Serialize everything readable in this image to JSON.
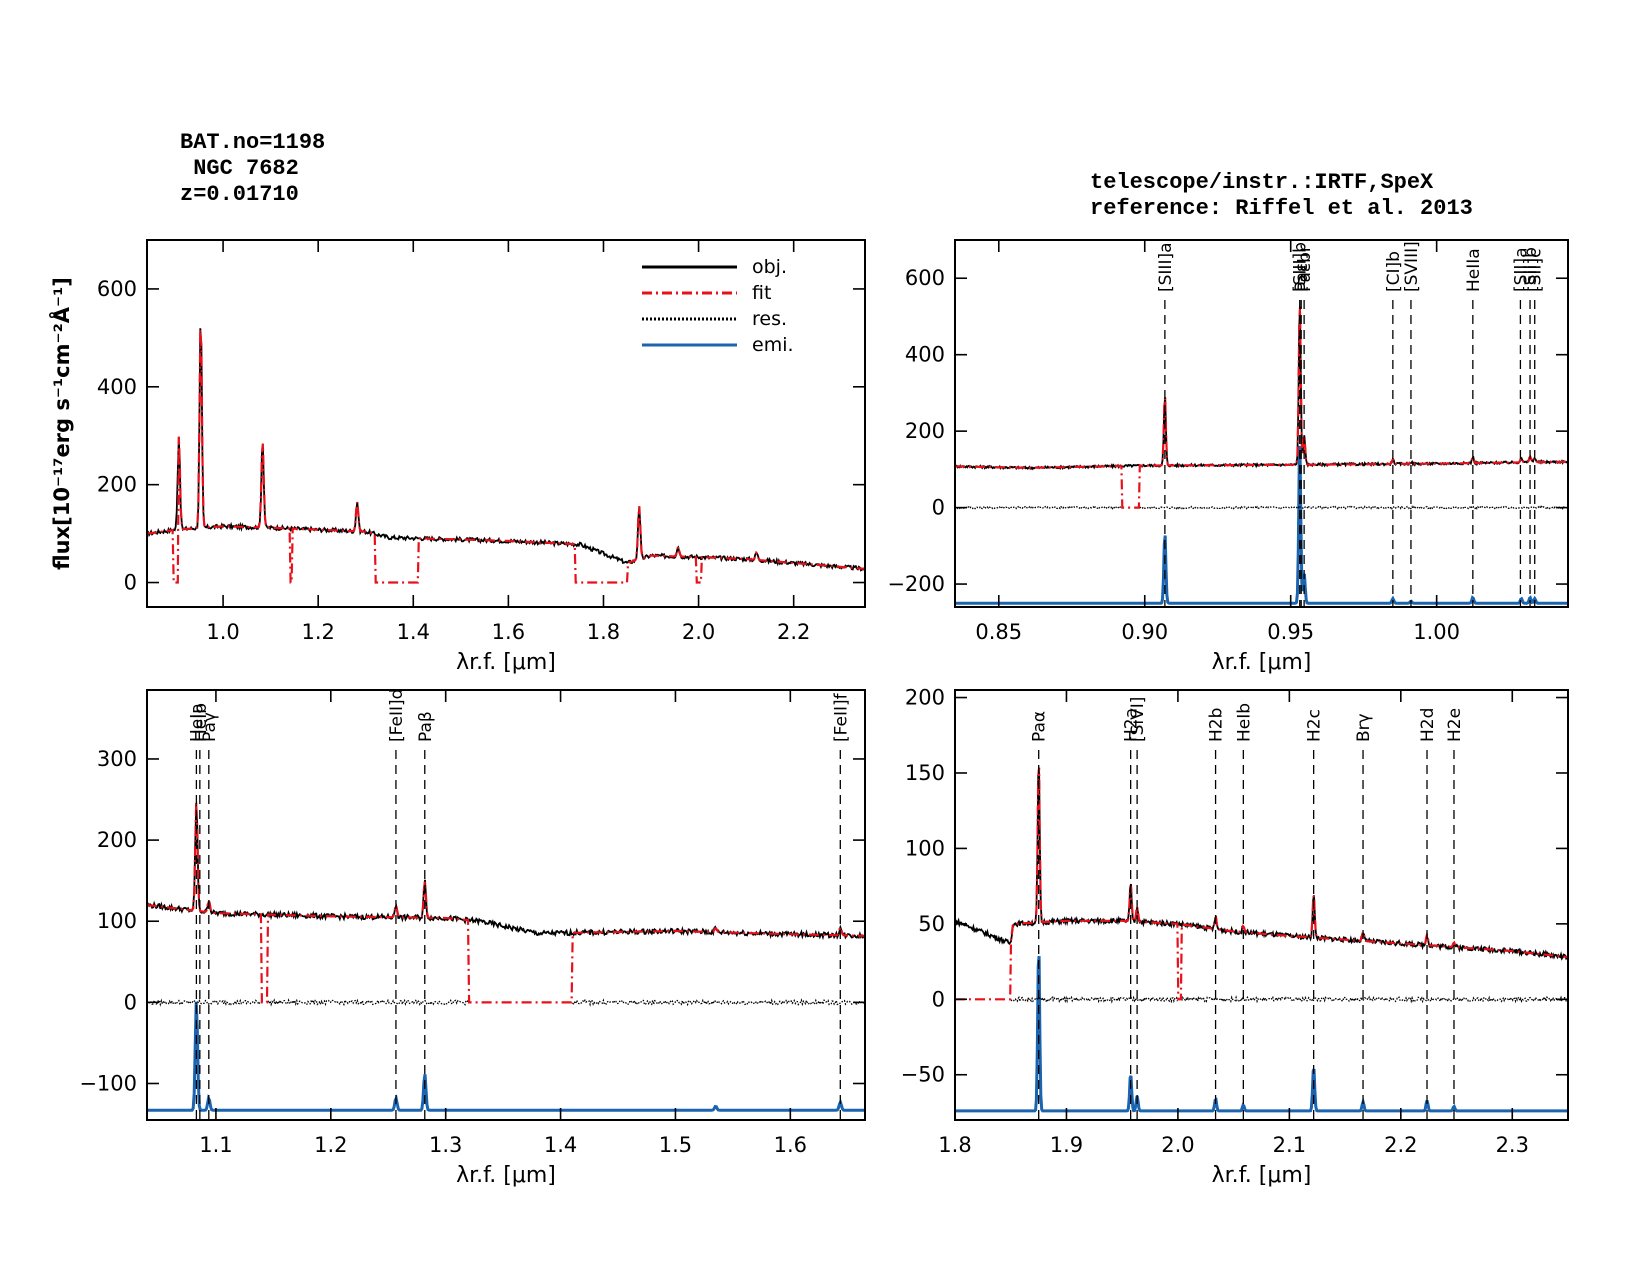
{
  "header": {
    "bat": "BAT.no=1198",
    "name": " NGC 7682",
    "z": "z=0.01710",
    "telescope": "telescope/instr.:IRTF,SpeX",
    "reference": "reference: Riffel et al. 2013"
  },
  "colors": {
    "obj": "#000000",
    "fit": "#e8101a",
    "res": "#000000",
    "emi": "#1b64b0"
  },
  "chart_data": [
    {
      "id": "full",
      "type": "line",
      "title": "",
      "xlabel": "λr.f. [μm]",
      "ylabel": "flux[10⁻¹⁷erg s⁻¹cm⁻²Å⁻¹]",
      "xlim": [
        0.84,
        2.35
      ],
      "ylim": [
        -50,
        700
      ],
      "xticks": [
        1.0,
        1.2,
        1.4,
        1.6,
        1.8,
        2.0,
        2.2
      ],
      "xticklabels": [
        "1.0",
        "1.2",
        "1.4",
        "1.6",
        "1.8",
        "2.0",
        "2.2"
      ],
      "yticks": [
        0,
        200,
        400,
        600
      ],
      "yticklabels": [
        "0",
        "200",
        "400",
        "600"
      ],
      "legend": {
        "position": "top-right",
        "entries": [
          {
            "label": "obj.",
            "style": "obj"
          },
          {
            "label": "fit",
            "style": "fit"
          },
          {
            "label": "res.",
            "style": "res"
          },
          {
            "label": "emi.",
            "style": "emi"
          }
        ]
      },
      "continuum": [
        [
          0.84,
          100
        ],
        [
          0.9,
          108
        ],
        [
          1.0,
          115
        ],
        [
          1.1,
          112
        ],
        [
          1.2,
          108
        ],
        [
          1.3,
          104
        ],
        [
          1.35,
          92
        ],
        [
          1.5,
          88
        ],
        [
          1.6,
          85
        ],
        [
          1.75,
          78
        ],
        [
          1.85,
          40
        ],
        [
          1.9,
          55
        ],
        [
          2.0,
          52
        ],
        [
          2.1,
          48
        ],
        [
          2.2,
          40
        ],
        [
          2.35,
          28
        ]
      ],
      "gap_segments": [],
      "fit_gaps": [
        [
          0.895,
          0.905
        ],
        [
          1.14,
          1.145
        ],
        [
          1.32,
          1.41
        ],
        [
          1.74,
          1.85
        ],
        [
          1.995,
          2.005
        ]
      ],
      "emission_lines": [
        [
          0.907,
          190
        ],
        [
          0.953,
          430
        ],
        [
          1.083,
          180
        ],
        [
          1.282,
          60
        ],
        [
          1.875,
          110
        ],
        [
          1.957,
          20
        ],
        [
          2.122,
          15
        ]
      ],
      "line_markers": [],
      "residual_offset": null,
      "emission_offset": null
    },
    {
      "id": "z-band",
      "type": "line",
      "xlabel": "λr.f. [μm]",
      "xlim": [
        0.835,
        1.045
      ],
      "ylim": [
        -260,
        700
      ],
      "xticks": [
        0.85,
        0.9,
        0.95,
        1.0
      ],
      "xticklabels": [
        "0.85",
        "0.90",
        "0.95",
        "1.00"
      ],
      "yticks": [
        -200,
        0,
        200,
        400,
        600
      ],
      "yticklabels": [
        "−200",
        "0",
        "200",
        "400",
        "600"
      ],
      "continuum": [
        [
          0.835,
          108
        ],
        [
          0.86,
          104
        ],
        [
          0.9,
          110
        ],
        [
          0.95,
          112
        ],
        [
          1.0,
          115
        ],
        [
          1.045,
          120
        ]
      ],
      "fit_gaps": [
        [
          0.892,
          0.898
        ]
      ],
      "emission_lines": [
        [
          0.9069,
          185
        ],
        [
          0.9531,
          430
        ],
        [
          0.9546,
          80
        ],
        [
          0.985,
          12
        ],
        [
          0.9912,
          5
        ],
        [
          1.0124,
          15
        ],
        [
          1.029,
          12
        ],
        [
          1.032,
          15
        ],
        [
          1.0336,
          12
        ]
      ],
      "line_markers": [
        {
          "x": 0.9069,
          "label": "[SIII]a"
        },
        {
          "x": 0.9531,
          "label": "[SIII]b"
        },
        {
          "x": 0.9536,
          "label": "Paε"
        },
        {
          "x": 0.9546,
          "label": "Paεbr"
        },
        {
          "x": 0.985,
          "label": "[CI]b"
        },
        {
          "x": 0.9912,
          "label": "[SVIII]"
        },
        {
          "x": 1.0124,
          "label": "HeIIa"
        },
        {
          "x": 1.0287,
          "label": "[SII]a"
        },
        {
          "x": 1.032,
          "label": "[SII]b"
        },
        {
          "x": 1.0336,
          "label": "[SII]c"
        }
      ],
      "residual_offset": 0,
      "emission_offset": -250
    },
    {
      "id": "J-band",
      "type": "line",
      "xlabel": "λr.f. [μm]",
      "xlim": [
        1.04,
        1.665
      ],
      "ylim": [
        -145,
        385
      ],
      "xticks": [
        1.1,
        1.2,
        1.3,
        1.4,
        1.5,
        1.6
      ],
      "xticklabels": [
        "1.1",
        "1.2",
        "1.3",
        "1.4",
        "1.5",
        "1.6"
      ],
      "yticks": [
        -100,
        0,
        100,
        200,
        300
      ],
      "yticklabels": [
        "−100",
        "0",
        "100",
        "200",
        "300"
      ],
      "continuum": [
        [
          1.04,
          120
        ],
        [
          1.1,
          110
        ],
        [
          1.2,
          106
        ],
        [
          1.3,
          104
        ],
        [
          1.33,
          100
        ],
        [
          1.38,
          85
        ],
        [
          1.5,
          88
        ],
        [
          1.6,
          84
        ],
        [
          1.665,
          82
        ]
      ],
      "fit_gaps": [
        [
          1.14,
          1.145
        ],
        [
          1.32,
          1.41
        ]
      ],
      "emission_lines": [
        [
          1.083,
          135
        ],
        [
          1.0938,
          15
        ],
        [
          1.2567,
          15
        ],
        [
          1.2818,
          45
        ],
        [
          1.6435,
          10
        ],
        [
          1.535,
          5
        ]
      ],
      "line_markers": [
        {
          "x": 1.083,
          "label": "HeIa"
        },
        {
          "x": 1.086,
          "label": "HeIb"
        },
        {
          "x": 1.0938,
          "label": "Paγ"
        },
        {
          "x": 1.2567,
          "label": "[FeII]d"
        },
        {
          "x": 1.2818,
          "label": "Paβ"
        },
        {
          "x": 1.6435,
          "label": "[FeII]f"
        }
      ],
      "residual_offset": 0,
      "emission_offset": -133
    },
    {
      "id": "K-band",
      "type": "line",
      "xlabel": "λr.f. [μm]",
      "xlim": [
        1.8,
        2.35
      ],
      "ylim": [
        -80,
        205
      ],
      "xticks": [
        1.8,
        1.9,
        2.0,
        2.1,
        2.2,
        2.3
      ],
      "xticklabels": [
        "1.8",
        "1.9",
        "2.0",
        "2.1",
        "2.2",
        "2.3"
      ],
      "yticks": [
        -50,
        0,
        50,
        100,
        150,
        200
      ],
      "yticklabels": [
        "−50",
        "0",
        "50",
        "100",
        "150",
        "200"
      ],
      "continuum": [
        [
          1.8,
          52
        ],
        [
          1.85,
          37
        ],
        [
          1.852,
          50
        ],
        [
          1.9,
          52
        ],
        [
          1.95,
          52
        ],
        [
          2.0,
          50
        ],
        [
          2.05,
          45
        ],
        [
          2.1,
          42
        ],
        [
          2.2,
          37
        ],
        [
          2.3,
          32
        ],
        [
          2.35,
          28
        ]
      ],
      "fit_gaps": [
        [
          1.8,
          1.85
        ],
        [
          2.0,
          2.003
        ]
      ],
      "emission_lines": [
        [
          1.8751,
          110
        ],
        [
          1.9576,
          25
        ],
        [
          1.9634,
          10
        ],
        [
          2.0338,
          8
        ],
        [
          2.0587,
          4
        ],
        [
          2.1218,
          30
        ],
        [
          2.1661,
          6
        ],
        [
          2.2235,
          7
        ],
        [
          2.2477,
          3
        ]
      ],
      "line_markers": [
        {
          "x": 1.8751,
          "label": "Paα"
        },
        {
          "x": 1.9576,
          "label": "H2a"
        },
        {
          "x": 1.9634,
          "label": "[SiVI]"
        },
        {
          "x": 2.0338,
          "label": "H2b"
        },
        {
          "x": 2.0587,
          "label": "HeIb"
        },
        {
          "x": 2.1218,
          "label": "H2c"
        },
        {
          "x": 2.1661,
          "label": "Brγ"
        },
        {
          "x": 2.2235,
          "label": "H2d"
        },
        {
          "x": 2.2477,
          "label": "H2e"
        }
      ],
      "residual_offset": 0,
      "emission_offset": -74
    }
  ]
}
